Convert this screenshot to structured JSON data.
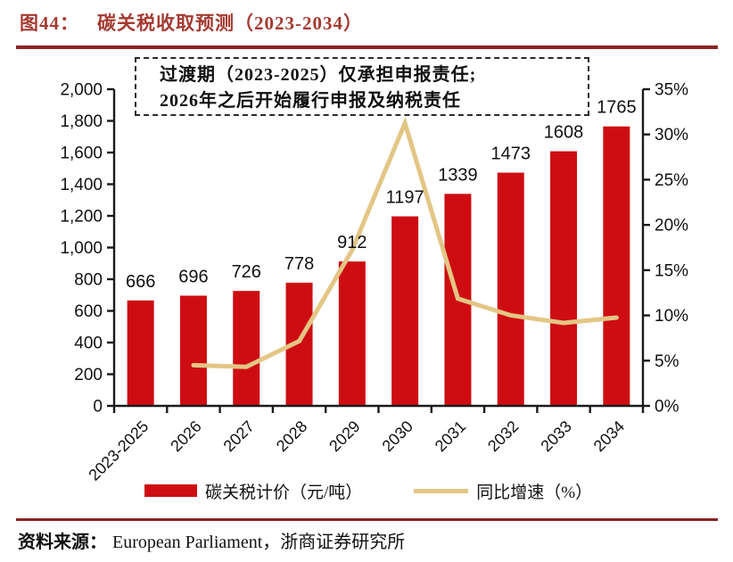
{
  "header": {
    "figure_label": "图44：",
    "title": "碳关税收取预测（2023-2034）"
  },
  "chart_data": {
    "type": "bar",
    "title": "碳关税收取预测（2023-2034）",
    "categories": [
      "2023-2025",
      "2026",
      "2027",
      "2028",
      "2029",
      "2030",
      "2031",
      "2032",
      "2033",
      "2034"
    ],
    "series": [
      {
        "name": "碳关税计价（元/吨）",
        "type": "bar",
        "axis": "left",
        "values": [
          666,
          696,
          726,
          778,
          912,
          1197,
          1339,
          1473,
          1608,
          1765
        ],
        "data_labels": [
          "666",
          "696",
          "726",
          "778",
          "912",
          "1197",
          "1339",
          "1473",
          "1608",
          "1765"
        ]
      },
      {
        "name": "同比增速（%）",
        "type": "line",
        "axis": "right",
        "values": [
          null,
          4.5,
          4.31,
          7.16,
          17.22,
          31.25,
          11.86,
          10.01,
          9.17,
          9.76
        ]
      }
    ],
    "left_axis": {
      "min": 0,
      "max": 2000,
      "step": 200,
      "tick_labels": [
        "0",
        "200",
        "400",
        "600",
        "800",
        "1,000",
        "1,200",
        "1,400",
        "1,600",
        "1,800",
        "2,000"
      ]
    },
    "right_axis": {
      "min": 0,
      "max": 35,
      "step": 5,
      "tick_labels": [
        "0%",
        "5%",
        "10%",
        "15%",
        "20%",
        "25%",
        "30%",
        "35%"
      ]
    },
    "grid": false,
    "legend_position": "bottom",
    "annotation": {
      "line1": "过渡期（2023-2025）仅承担申报责任;",
      "line2": "2026年之后开始履行申报及纳税责任"
    }
  },
  "legend": {
    "bar_label": "碳关税计价（元/吨）",
    "line_label": "同比增速（%）"
  },
  "footer": {
    "source_label": "资料来源：",
    "source_text": "European Parliament，浙商证券研究所"
  },
  "colors": {
    "bar": "#CE0D12",
    "line": "#E3C685",
    "title": "#A43A31",
    "rule": "#8E2222",
    "axis": "#1a1a1a",
    "text": "#111111"
  }
}
